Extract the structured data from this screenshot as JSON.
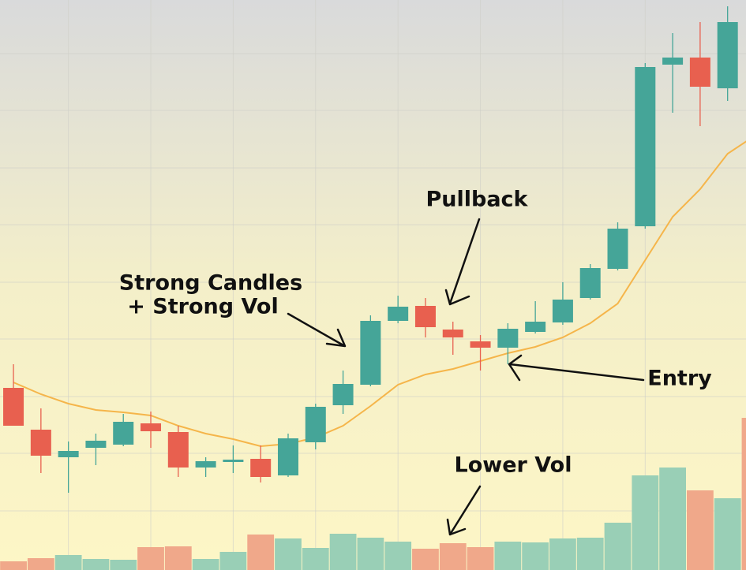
{
  "chart_data": {
    "type": "candlestick",
    "x": [
      1,
      2,
      3,
      4,
      5,
      6,
      7,
      8,
      9,
      10,
      11,
      12,
      13,
      14,
      15,
      16,
      17,
      18,
      19,
      20,
      21,
      22,
      23,
      24,
      25,
      26,
      27,
      28
    ],
    "open": [
      231,
      178,
      143,
      155,
      159,
      186,
      175,
      130,
      137,
      141,
      120,
      162,
      209,
      235,
      316,
      335,
      305,
      290,
      282,
      302,
      314,
      345,
      382,
      436,
      641,
      650,
      611,
      null
    ],
    "high": [
      261,
      205,
      163,
      173,
      198,
      201,
      183,
      143,
      158,
      158,
      173,
      211,
      253,
      323,
      348,
      345,
      315,
      298,
      313,
      341,
      365,
      388,
      441,
      643,
      681,
      695,
      715,
      null
    ],
    "low": [
      183,
      123,
      98,
      133,
      157,
      155,
      118,
      118,
      123,
      111,
      118,
      153,
      198,
      233,
      313,
      295,
      273,
      253,
      261,
      300,
      311,
      343,
      380,
      433,
      580,
      563,
      595,
      null
    ],
    "close": [
      183,
      145,
      151,
      164,
      188,
      176,
      130,
      138,
      140,
      118,
      167,
      207,
      236,
      316,
      334,
      308,
      295,
      282,
      306,
      315,
      343,
      383,
      433,
      638,
      650,
      613,
      695,
      null
    ],
    "up_color": "#45a598",
    "down_color": "#e8604f",
    "xlim": [
      0.51,
      27.67
    ],
    "ylim": [
      0,
      723
    ],
    "xticks": [
      3,
      6,
      9,
      12,
      15,
      18,
      21,
      24
    ],
    "yticks": [
      75,
      148,
      220,
      293,
      365,
      438,
      510,
      583,
      655
    ],
    "grid": true,
    "y2lim": [
      0,
      723
    ],
    "volume": {
      "axis": "y2",
      "values": [
        11,
        15,
        19,
        14,
        13,
        29,
        30,
        14,
        23,
        45,
        40,
        28,
        46,
        41,
        36,
        27,
        34,
        29,
        36,
        35,
        40,
        41,
        60,
        120,
        130,
        101,
        91,
        193
      ],
      "colors": [
        "#f0a88a",
        "#f0a88a",
        "#99cfb6",
        "#99cfb6",
        "#99cfb6",
        "#f0a88a",
        "#f0a88a",
        "#99cfb6",
        "#99cfb6",
        "#f0a88a",
        "#99cfb6",
        "#99cfb6",
        "#99cfb6",
        "#99cfb6",
        "#99cfb6",
        "#f0a88a",
        "#f0a88a",
        "#f0a88a",
        "#99cfb6",
        "#99cfb6",
        "#99cfb6",
        "#99cfb6",
        "#99cfb6",
        "#99cfb6",
        "#99cfb6",
        "#f0a88a",
        "#99cfb6",
        "#f0a88a"
      ]
    },
    "ma": {
      "color": "#f5b54a",
      "values": [
        238,
        223,
        211,
        203,
        200,
        196,
        183,
        173,
        166,
        157,
        160,
        168,
        183,
        208,
        235,
        248,
        255,
        265,
        275,
        283,
        295,
        313,
        338,
        393,
        448,
        483,
        528,
        551
      ]
    },
    "annotations": [
      {
        "lines": [
          "Pullback"
        ]
      },
      {
        "lines": [
          "Strong Candles",
          "+ Strong Vol"
        ]
      },
      {
        "lines": [
          "Entry"
        ]
      },
      {
        "lines": [
          "Lower Vol"
        ]
      }
    ]
  }
}
